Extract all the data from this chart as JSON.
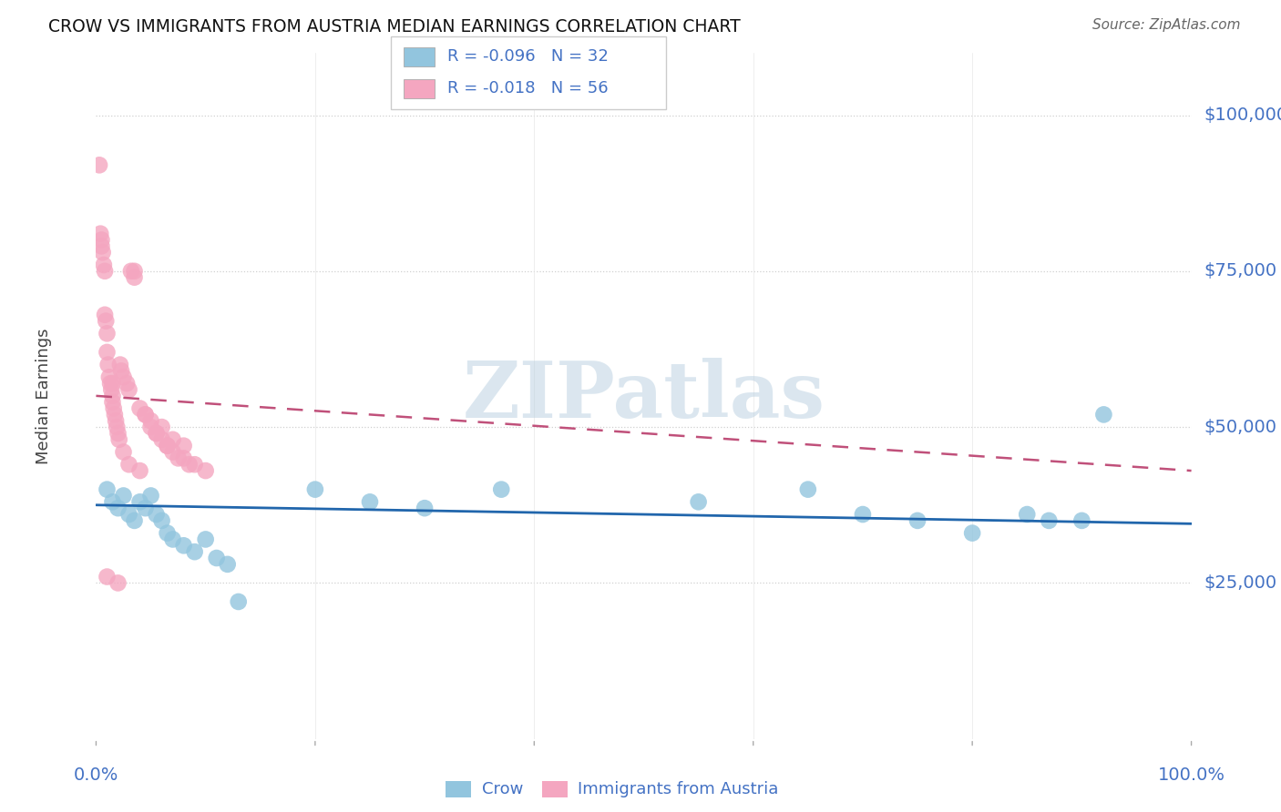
{
  "title": "CROW VS IMMIGRANTS FROM AUSTRIA MEDIAN EARNINGS CORRELATION CHART",
  "source": "Source: ZipAtlas.com",
  "ylabel": "Median Earnings",
  "yticks": [
    25000,
    50000,
    75000,
    100000
  ],
  "ytick_labels": [
    "$25,000",
    "$50,000",
    "$75,000",
    "$100,000"
  ],
  "crow_R": "-0.096",
  "crow_N": "32",
  "austria_R": "-0.018",
  "austria_N": "56",
  "crow_color": "#92c5de",
  "austria_color": "#f4a6c0",
  "crow_line_color": "#2166ac",
  "austria_line_color": "#c0507a",
  "watermark": "ZIPatlas",
  "crow_points_x": [
    1.0,
    1.5,
    2.0,
    2.5,
    3.0,
    3.5,
    4.0,
    4.5,
    5.0,
    5.5,
    6.0,
    6.5,
    7.0,
    8.0,
    9.0,
    10.0,
    11.0,
    12.0,
    13.0,
    20.0,
    25.0,
    30.0,
    37.0,
    55.0,
    65.0,
    70.0,
    75.0,
    80.0,
    85.0,
    87.0,
    90.0,
    92.0
  ],
  "crow_points_y": [
    40000,
    38000,
    37000,
    39000,
    36000,
    35000,
    38000,
    37000,
    39000,
    36000,
    35000,
    33000,
    32000,
    31000,
    30000,
    32000,
    29000,
    28000,
    22000,
    40000,
    38000,
    37000,
    40000,
    38000,
    40000,
    36000,
    35000,
    33000,
    36000,
    35000,
    35000,
    52000
  ],
  "austria_points_x": [
    0.3,
    0.4,
    0.5,
    0.5,
    0.6,
    0.7,
    0.8,
    0.8,
    0.9,
    1.0,
    1.0,
    1.1,
    1.2,
    1.3,
    1.4,
    1.5,
    1.5,
    1.6,
    1.7,
    1.8,
    1.9,
    2.0,
    2.1,
    2.2,
    2.3,
    2.5,
    2.8,
    3.0,
    3.2,
    3.5,
    4.0,
    4.5,
    5.0,
    5.5,
    6.0,
    6.5,
    7.0,
    8.0,
    9.0,
    10.0,
    1.0,
    2.0,
    3.0,
    4.0,
    5.0,
    6.0,
    7.0,
    8.0,
    1.5,
    2.5,
    3.5,
    4.5,
    5.5,
    6.5,
    7.5,
    8.5
  ],
  "austria_points_y": [
    92000,
    81000,
    80000,
    79000,
    78000,
    76000,
    75000,
    68000,
    67000,
    65000,
    62000,
    60000,
    58000,
    57000,
    56000,
    55000,
    54000,
    53000,
    52000,
    51000,
    50000,
    49000,
    48000,
    60000,
    59000,
    58000,
    57000,
    56000,
    75000,
    74000,
    53000,
    52000,
    50000,
    49000,
    48000,
    47000,
    46000,
    45000,
    44000,
    43000,
    26000,
    25000,
    44000,
    43000,
    51000,
    50000,
    48000,
    47000,
    57000,
    46000,
    75000,
    52000,
    49000,
    47000,
    45000,
    44000
  ],
  "background_color": "#ffffff",
  "grid_color": "#d0d0d0",
  "ylim_min": 0,
  "ylim_max": 110000,
  "xlim_min": 0,
  "xlim_max": 100
}
